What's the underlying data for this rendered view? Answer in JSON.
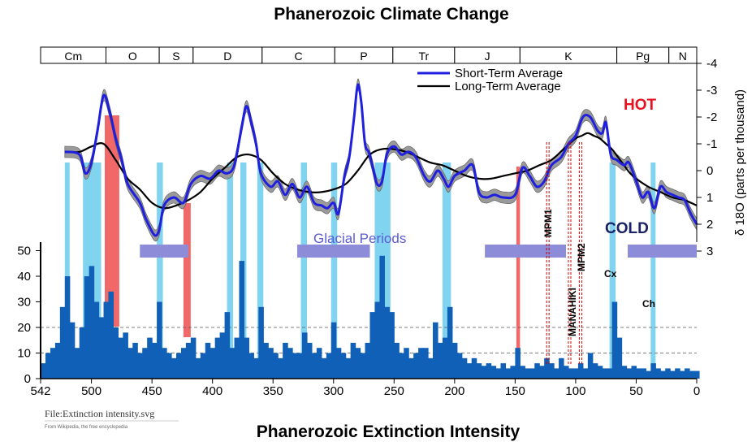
{
  "titles": {
    "top": "Phanerozoic Climate Change",
    "bottom": "Phanerozoic Extinction Intensity"
  },
  "periods": [
    {
      "label": "Cm",
      "start": 542,
      "end": 488
    },
    {
      "label": "O",
      "start": 488,
      "end": 444
    },
    {
      "label": "S",
      "start": 444,
      "end": 416
    },
    {
      "label": "D",
      "start": 416,
      "end": 359
    },
    {
      "label": "C",
      "start": 359,
      "end": 299
    },
    {
      "label": "P",
      "start": 299,
      "end": 251
    },
    {
      "label": "Tr",
      "start": 251,
      "end": 200
    },
    {
      "label": "J",
      "start": 200,
      "end": 146
    },
    {
      "label": "K",
      "start": 146,
      "end": 66
    },
    {
      "label": "Pg",
      "start": 66,
      "end": 23
    },
    {
      "label": "N",
      "start": 23,
      "end": 0
    }
  ],
  "annotations": {
    "hot": "HOT",
    "cold": "COLD",
    "glacial": "Glacial Periods",
    "events": [
      "MPM1",
      "MANAHIKI",
      "MPM2",
      "Cx",
      "Ch"
    ]
  },
  "file_caption": {
    "name": "File:Extinction intensity.svg",
    "source": "From Wikipedia, the free encyclopedia"
  },
  "colors": {
    "short_term": "#1f1fe0",
    "long_term": "#000000",
    "envelope": "#9a9a9a",
    "extinction_fill": "#1060b8",
    "cold_band": "#80d4f0",
    "hot_band": "#f06868",
    "glacial_bar": "#8c8cd8",
    "hot_text": "#e8121f",
    "cold_text": "#1a2266"
  },
  "chart_data": [
    {
      "type": "line",
      "title": "Phanerozoic Climate Change",
      "xlabel": "",
      "ylabel": "δ 18O (parts per thousand)",
      "xlim": [
        542,
        0
      ],
      "ylim": [
        -4,
        3
      ],
      "y_inverted": true,
      "y_ticks": [
        "-4",
        "-3",
        "-2",
        "-1",
        "0",
        "1",
        "2",
        "3"
      ],
      "legend": {
        "placement": "top-right",
        "entries": [
          "Short-Term Average",
          "Long-Term Average"
        ]
      },
      "series": [
        {
          "name": "Short-Term Average",
          "x": [
            522,
            510,
            505,
            500,
            495,
            490,
            485,
            480,
            475,
            470,
            460,
            455,
            448,
            444,
            440,
            432,
            424,
            418,
            410,
            402,
            395,
            388,
            382,
            376,
            372,
            368,
            364,
            360,
            352,
            346,
            340,
            334,
            328,
            322,
            316,
            310,
            305,
            300,
            296,
            291,
            287,
            283,
            280,
            277,
            274,
            271,
            268,
            264,
            260,
            256,
            250,
            244,
            238,
            232,
            225,
            220,
            214,
            209,
            205,
            200,
            192,
            185,
            180,
            174,
            167,
            160,
            150,
            144,
            138,
            132,
            126,
            120,
            112,
            106,
            100,
            94,
            88,
            82,
            78,
            75,
            71,
            66,
            60,
            56,
            50,
            45,
            40,
            35,
            30,
            25,
            20,
            15,
            10,
            5,
            0
          ],
          "y": [
            -0.7,
            -0.6,
            0.1,
            -0.3,
            -1.5,
            -2.8,
            -2.2,
            -1.2,
            -0.4,
            0.5,
            1.2,
            1.8,
            2.4,
            2.2,
            1.3,
            1.0,
            1.2,
            0.5,
            0.2,
            0.3,
            0.0,
            0.1,
            -0.2,
            -1.6,
            -2.4,
            -1.8,
            -1.0,
            0.1,
            0.6,
            0.4,
            0.9,
            0.5,
            1.0,
            0.6,
            1.2,
            1.3,
            1.4,
            1.2,
            1.6,
            0.2,
            -0.5,
            -2.0,
            -3.2,
            -2.5,
            -1.0,
            -0.7,
            -0.2,
            0.5,
            0.4,
            -0.6,
            -0.9,
            -0.6,
            -0.7,
            -0.5,
            0.2,
            0.4,
            0.0,
            0.3,
            0.6,
            0.2,
            0.0,
            -0.2,
            0.8,
            1.0,
            0.9,
            1.0,
            0.9,
            -0.1,
            0.2,
            0.6,
            0.4,
            -0.2,
            -0.5,
            -1.0,
            -1.3,
            -2.0,
            -2.0,
            -1.5,
            -1.4,
            -1.8,
            -0.6,
            -0.4,
            -0.2,
            -0.3,
            0.4,
            1.0,
            0.8,
            1.4,
            0.6,
            0.8,
            0.9,
            1.0,
            1.1,
            1.6,
            2.0
          ]
        },
        {
          "name": "Long-Term Average",
          "x": [
            522,
            510,
            500,
            490,
            480,
            470,
            460,
            450,
            440,
            430,
            420,
            410,
            400,
            390,
            380,
            370,
            360,
            350,
            340,
            330,
            320,
            310,
            300,
            290,
            280,
            270,
            260,
            250,
            240,
            230,
            220,
            210,
            200,
            190,
            180,
            170,
            160,
            150,
            140,
            130,
            120,
            110,
            100,
            95,
            90,
            85,
            80,
            75,
            70,
            65,
            60,
            55,
            50,
            40,
            30,
            20,
            10,
            0
          ],
          "y": [
            -0.7,
            -0.7,
            -0.9,
            -1.0,
            -0.4,
            0.3,
            0.7,
            1.2,
            1.4,
            1.3,
            1.1,
            0.8,
            0.3,
            -0.1,
            -0.5,
            -0.6,
            -0.4,
            0.1,
            0.5,
            0.7,
            0.8,
            0.8,
            0.7,
            0.5,
            0.0,
            -0.6,
            -0.8,
            -0.8,
            -0.7,
            -0.5,
            -0.3,
            -0.2,
            0.0,
            0.2,
            0.3,
            0.3,
            0.2,
            0.1,
            0.0,
            -0.2,
            -0.4,
            -0.8,
            -1.2,
            -1.3,
            -1.4,
            -1.3,
            -1.2,
            -1.0,
            -0.8,
            -0.5,
            -0.2,
            0.1,
            0.3,
            0.6,
            0.8,
            1.0,
            1.1,
            1.3
          ]
        }
      ],
      "cold_bands": [
        [
          522,
          518
        ],
        [
          507,
          492
        ],
        [
          446,
          441
        ],
        [
          388,
          383
        ],
        [
          377,
          372
        ],
        [
          363,
          358
        ],
        [
          327,
          322
        ],
        [
          302,
          297
        ],
        [
          266,
          253
        ],
        [
          210,
          203
        ],
        [
          72,
          67
        ],
        [
          38,
          34
        ]
      ],
      "hot_bands": [
        [
          489,
          477
        ],
        [
          424,
          418
        ],
        [
          149,
          146
        ]
      ],
      "glacial_periods": [
        [
          460,
          420
        ],
        [
          330,
          270
        ],
        [
          175,
          108
        ],
        [
          57,
          0
        ]
      ],
      "event_lines": [
        {
          "label": "MPM1",
          "x": 124
        },
        {
          "label": "MANAHIKI",
          "x": 106
        },
        {
          "label": "MPM2",
          "x": 97
        },
        {
          "label": "Cx",
          "x": 68
        },
        {
          "label": "Ch",
          "x": 36
        }
      ]
    },
    {
      "type": "bar",
      "title": "Phanerozoic Extinction Intensity",
      "xlabel": "",
      "ylabel": "",
      "xlim": [
        542,
        0
      ],
      "ylim": [
        0,
        55
      ],
      "x_ticks": [
        542,
        500,
        450,
        400,
        350,
        300,
        250,
        200,
        150,
        100,
        50,
        0
      ],
      "y_ticks": [
        0,
        10,
        20,
        30,
        40,
        50
      ],
      "reference_lines": [
        10,
        20
      ],
      "x": [
        542,
        538,
        534,
        530,
        526,
        522,
        518,
        514,
        510,
        506,
        502,
        498,
        494,
        490,
        486,
        482,
        478,
        474,
        470,
        466,
        462,
        458,
        454,
        450,
        446,
        442,
        438,
        434,
        430,
        426,
        422,
        418,
        414,
        410,
        406,
        402,
        398,
        394,
        390,
        386,
        382,
        378,
        374,
        370,
        366,
        362,
        358,
        354,
        350,
        346,
        342,
        338,
        334,
        330,
        326,
        322,
        318,
        314,
        310,
        306,
        302,
        298,
        294,
        290,
        286,
        282,
        278,
        274,
        270,
        266,
        262,
        258,
        254,
        250,
        246,
        242,
        238,
        234,
        230,
        226,
        222,
        218,
        214,
        210,
        206,
        202,
        198,
        194,
        190,
        186,
        182,
        178,
        174,
        170,
        166,
        162,
        158,
        154,
        150,
        146,
        142,
        138,
        134,
        130,
        126,
        122,
        118,
        114,
        110,
        106,
        102,
        98,
        94,
        90,
        86,
        82,
        78,
        74,
        70,
        66,
        62,
        58,
        54,
        50,
        46,
        42,
        38,
        34,
        30,
        26,
        22,
        18,
        14,
        10,
        6,
        2
      ],
      "values": [
        6,
        10,
        12,
        14,
        28,
        40,
        22,
        12,
        20,
        40,
        44,
        30,
        24,
        30,
        34,
        20,
        16,
        18,
        12,
        14,
        10,
        12,
        16,
        14,
        30,
        12,
        10,
        8,
        10,
        12,
        14,
        16,
        8,
        10,
        14,
        12,
        16,
        18,
        26,
        12,
        16,
        46,
        16,
        10,
        8,
        28,
        14,
        12,
        10,
        8,
        14,
        12,
        10,
        10,
        18,
        14,
        10,
        12,
        8,
        10,
        22,
        12,
        10,
        8,
        14,
        12,
        10,
        14,
        26,
        30,
        48,
        28,
        26,
        14,
        10,
        12,
        8,
        10,
        12,
        12,
        8,
        22,
        14,
        16,
        28,
        14,
        10,
        8,
        6,
        8,
        6,
        5,
        6,
        5,
        4,
        6,
        4,
        5,
        12,
        5,
        4,
        4,
        6,
        5,
        8,
        6,
        4,
        8,
        5,
        4,
        4,
        6,
        4,
        10,
        6,
        5,
        4,
        4,
        30,
        16,
        5,
        4,
        5,
        4,
        4,
        3,
        6,
        4,
        3,
        4,
        3,
        4,
        3,
        4,
        3,
        3
      ]
    }
  ]
}
